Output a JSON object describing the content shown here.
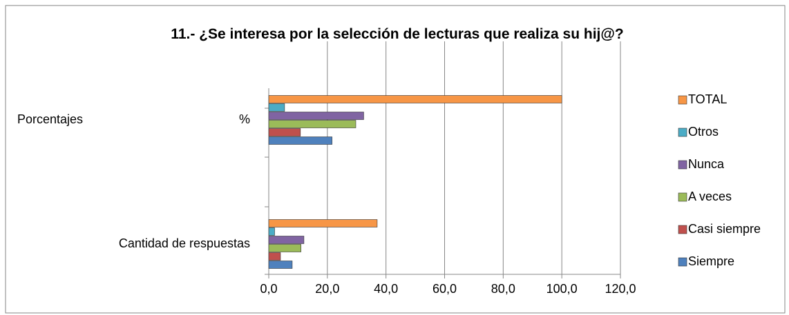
{
  "chart_data": {
    "type": "barh",
    "title": "11.- ¿Se interesa por la selección de lecturas que realiza su hij@?",
    "categories": [
      "Cantidad de respuestas",
      "Porcentajes"
    ],
    "category_units": [
      null,
      "%"
    ],
    "series": [
      {
        "name": "Siempre",
        "color": "#4f81bd",
        "values": [
          8,
          21.6
        ]
      },
      {
        "name": "Casi siempre",
        "color": "#c0504d",
        "values": [
          4,
          10.8
        ]
      },
      {
        "name": "A veces",
        "color": "#9bbb59",
        "values": [
          11,
          29.7
        ]
      },
      {
        "name": "Nunca",
        "color": "#8064a2",
        "values": [
          12,
          32.4
        ]
      },
      {
        "name": "Otros",
        "color": "#4bacc6",
        "values": [
          2,
          5.4
        ]
      },
      {
        "name": "TOTAL",
        "color": "#f79646",
        "values": [
          37,
          100
        ]
      }
    ],
    "xlim": [
      0,
      120
    ],
    "xticks": [
      {
        "value": 0,
        "label": "0,0"
      },
      {
        "value": 20,
        "label": "20,0"
      },
      {
        "value": 40,
        "label": "40,0"
      },
      {
        "value": 60,
        "label": "60,0"
      },
      {
        "value": 80,
        "label": "80,0"
      },
      {
        "value": 100,
        "label": "100,0"
      },
      {
        "value": 120,
        "label": "120,0"
      }
    ],
    "grid": true,
    "legend": "right"
  }
}
